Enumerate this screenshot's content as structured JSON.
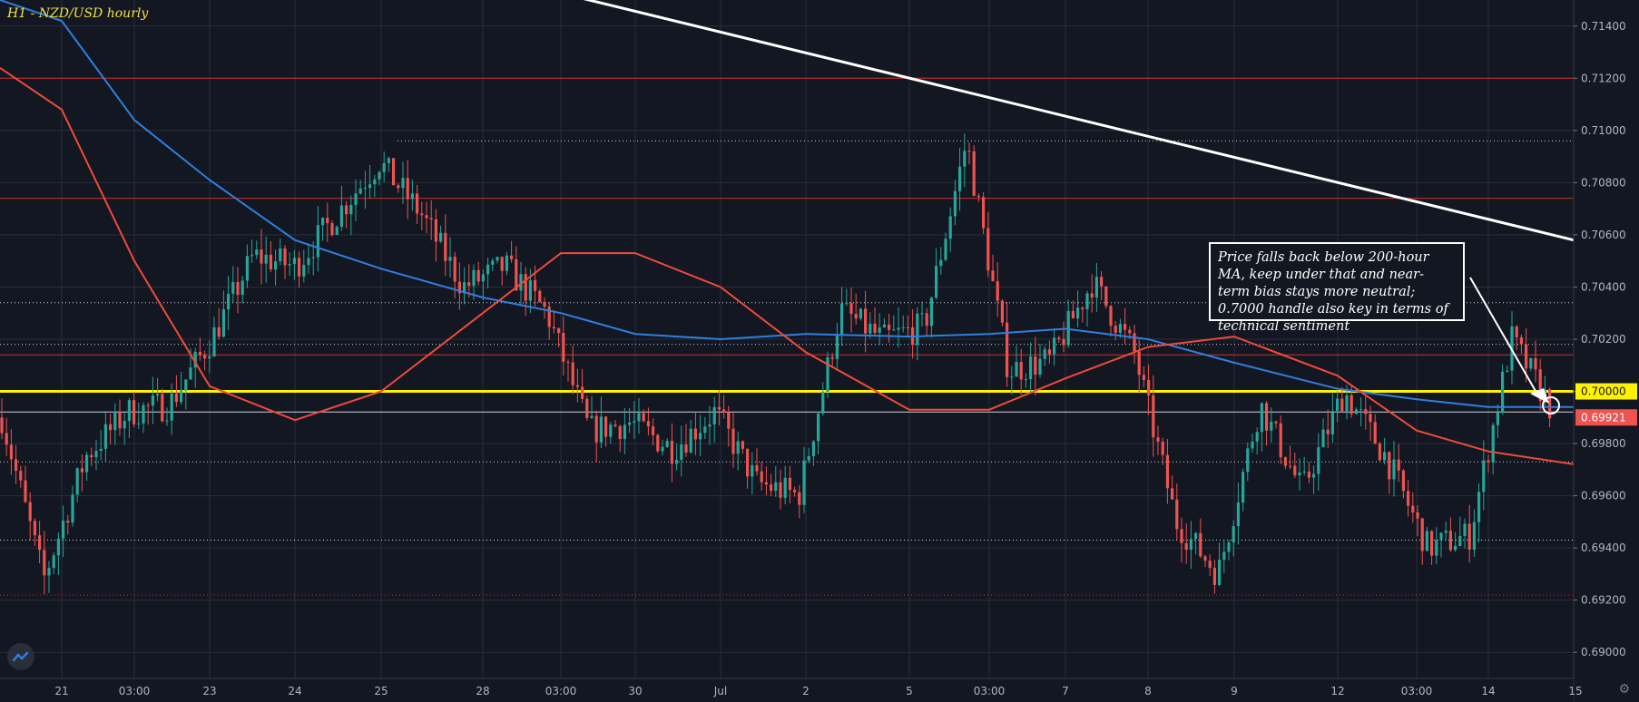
{
  "title": "H1 - NZD/USD hourly",
  "annotation": "Price falls back below 200-hour MA, keep under that and near-term bias stays more neutral; 0.7000 handle also key in terms of technical sentiment",
  "colors": {
    "background": "#131722",
    "grid": "#2a2e39",
    "candle_up": "#26a69a",
    "candle_down": "#ef5350",
    "ma_200": "#2f7fe0",
    "ma_100": "#f04a3a",
    "support_line": "#fff200",
    "trendline": "#ffffff",
    "resistance_lines": "#c9302c",
    "price_label_bg": "#ef5350"
  },
  "icons": {
    "logo": "tradingview-logo-icon",
    "settings": "gear-icon"
  },
  "chart_data": {
    "type": "candlestick",
    "symbol": "NZD/USD",
    "timeframe": "H1",
    "ylim": [
      0.689,
      0.715
    ],
    "y_ticks": [
      "0.69000",
      "0.69200",
      "0.69400",
      "0.69600",
      "0.69800",
      "0.70000",
      "0.70200",
      "0.70400",
      "0.70600",
      "0.70800",
      "0.71000",
      "0.71200",
      "0.71400"
    ],
    "x_ticks": [
      "21",
      "03:00",
      "23",
      "24",
      "25",
      "28",
      "03:00",
      "30",
      "Jul",
      "2",
      "5",
      "03:00",
      "7",
      "8",
      "9",
      "12",
      "03:00",
      "14",
      "15"
    ],
    "price_labels": {
      "support": "0.70000",
      "last": "0.69921"
    },
    "last_price": 0.69921,
    "horizontal_levels": [
      {
        "price": 0.7,
        "style": "solid",
        "color": "yellow"
      },
      {
        "price": 0.69921,
        "style": "solid",
        "color": "white"
      },
      {
        "price": 0.712,
        "style": "solid",
        "color": "red"
      },
      {
        "price": 0.7074,
        "style": "solid",
        "color": "red"
      },
      {
        "price": 0.7014,
        "style": "solid",
        "color": "red"
      },
      {
        "price": 0.6922,
        "style": "dotted",
        "color": "red"
      },
      {
        "price": 0.7096,
        "style": "dotted",
        "color": "white"
      },
      {
        "price": 0.7034,
        "style": "dotted",
        "color": "white"
      },
      {
        "price": 0.7018,
        "style": "dotted",
        "color": "white"
      },
      {
        "price": 0.6973,
        "style": "dotted",
        "color": "white"
      },
      {
        "price": 0.6943,
        "style": "dotted",
        "color": "white"
      }
    ],
    "trendline": {
      "start": {
        "x_tick": "03:00",
        "price": 0.7155
      },
      "end": {
        "x_tick": "15",
        "price": 0.7058
      }
    },
    "ma_200": [
      [
        "21",
        0.7142
      ],
      [
        "03:00",
        0.7104
      ],
      [
        "23",
        0.7081
      ],
      [
        "24",
        0.7058
      ],
      [
        "25",
        0.7047
      ],
      [
        "28",
        0.7036
      ],
      [
        "03:00",
        0.703
      ],
      [
        "30",
        0.7022
      ],
      [
        "Jul",
        0.702
      ],
      [
        "2",
        0.7022
      ],
      [
        "5",
        0.7021
      ],
      [
        "03:00",
        0.7022
      ],
      [
        "7",
        0.7024
      ],
      [
        "8",
        0.702
      ],
      [
        "9",
        0.7011
      ],
      [
        "12",
        0.7001
      ],
      [
        "03:00",
        0.6997
      ],
      [
        "14",
        0.6994
      ],
      [
        "15",
        0.6994
      ]
    ],
    "ma_100": [
      [
        "21",
        0.7108
      ],
      [
        "03:00",
        0.705
      ],
      [
        "23",
        0.7002
      ],
      [
        "24",
        0.6989
      ],
      [
        "25",
        0.7
      ],
      [
        "28",
        0.703
      ],
      [
        "03:00",
        0.7053
      ],
      [
        "30",
        0.7053
      ],
      [
        "Jul",
        0.704
      ],
      [
        "2",
        0.7015
      ],
      [
        "5",
        0.6993
      ],
      [
        "03:00",
        0.6993
      ],
      [
        "7",
        0.7005
      ],
      [
        "8",
        0.7017
      ],
      [
        "9",
        0.7021
      ],
      [
        "12",
        0.7006
      ],
      [
        "03:00",
        0.6985
      ],
      [
        "14",
        0.6977
      ],
      [
        "15",
        0.6972
      ]
    ],
    "price_path": [
      [
        "21",
        0.699
      ],
      [
        "21",
        0.6928
      ],
      [
        "03:00",
        0.6975
      ],
      [
        "03:00",
        0.6992
      ],
      [
        "23",
        0.6995
      ],
      [
        "23",
        0.702
      ],
      [
        "24",
        0.7052
      ],
      [
        "24",
        0.7048
      ],
      [
        "25",
        0.7068
      ],
      [
        "28",
        0.7088
      ],
      [
        "28",
        0.7068
      ],
      [
        "03:00",
        0.704
      ],
      [
        "03:00",
        0.7048
      ],
      [
        "30",
        0.703
      ],
      [
        "30",
        0.6985
      ],
      [
        "Jul",
        0.6988
      ],
      [
        "Jul",
        0.6978
      ],
      [
        "2",
        0.6992
      ],
      [
        "2",
        0.6965
      ],
      [
        "5",
        0.696
      ],
      [
        "5",
        0.7031
      ],
      [
        "03:00",
        0.702
      ],
      [
        "03:00",
        0.7025
      ],
      [
        "7",
        0.7096
      ],
      [
        "7",
        0.7008
      ],
      [
        "8",
        0.7012
      ],
      [
        "8",
        0.7042
      ],
      [
        "9",
        0.7015
      ],
      [
        "9",
        0.695
      ],
      [
        "12",
        0.693
      ],
      [
        "12",
        0.6995
      ],
      [
        "03:00",
        0.6962
      ],
      [
        "03:00",
        0.7
      ],
      [
        "14",
        0.6975
      ],
      [
        "14",
        0.694
      ],
      [
        "15",
        0.6945
      ],
      [
        "15",
        0.702
      ],
      [
        "15",
        0.6992
      ]
    ]
  }
}
